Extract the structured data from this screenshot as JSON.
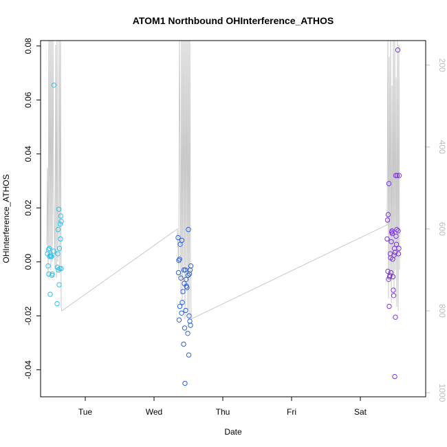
{
  "chart_data": {
    "type": "scatter",
    "title": "ATOM1 Northbound OHInterference_ATHOS",
    "xlabel": "Date",
    "ylabel": "OHInterference_ATHOS",
    "x_ticks": [
      "Tue",
      "Wed",
      "Thu",
      "Fri",
      "Sat"
    ],
    "x_range_days": [
      -0.65,
      4.95
    ],
    "ylim": [
      -0.05,
      0.082
    ],
    "y_ticks": [
      -0.04,
      -0.02,
      0.0,
      0.02,
      0.04,
      0.06,
      0.08
    ],
    "y_tick_labels": [
      "-0.04",
      "-0.02",
      "0.00",
      "0.02",
      "0.04",
      "0.06",
      "0.08"
    ],
    "right_axis": {
      "reversed": true,
      "lim": [
        140,
        1010
      ],
      "ticks": [
        200,
        400,
        600,
        800,
        1000
      ],
      "tick_labels": [
        "200",
        "400",
        "600",
        "800",
        "1000"
      ],
      "color": "#bdbdbd"
    },
    "grid": false,
    "series": [
      {
        "color": "#29c3ee",
        "points": [
          [
            -0.55,
            0.003
          ],
          [
            -0.54,
            -0.0015
          ],
          [
            -0.535,
            0.0045
          ],
          [
            -0.53,
            -0.0045
          ],
          [
            -0.525,
            0.005
          ],
          [
            -0.52,
            0.002
          ],
          [
            -0.51,
            -0.012
          ],
          [
            -0.505,
            0.0025
          ],
          [
            -0.5,
            0.002
          ],
          [
            -0.49,
            0.002
          ],
          [
            -0.485,
            -0.005
          ],
          [
            -0.48,
            -0.0045
          ],
          [
            -0.46,
            0.004
          ],
          [
            -0.455,
            0.0655
          ],
          [
            -0.41,
            -0.0155
          ],
          [
            -0.405,
            -0.002
          ],
          [
            -0.4,
            0.003
          ],
          [
            -0.395,
            0.012
          ],
          [
            -0.39,
            -0.003
          ],
          [
            -0.385,
            0.0195
          ],
          [
            -0.38,
            -0.0085
          ],
          [
            -0.375,
            0.005
          ],
          [
            -0.37,
            -0.0025
          ],
          [
            -0.365,
            0.014
          ],
          [
            -0.36,
            0.0085
          ],
          [
            -0.355,
            0.017
          ],
          [
            -0.35,
            0.015
          ],
          [
            -0.35,
            -0.0025
          ]
        ]
      },
      {
        "color": "#2b5fe0",
        "points": [
          [
            1.35,
            0.009
          ],
          [
            1.355,
            -0.004
          ],
          [
            1.36,
            0.0005
          ],
          [
            1.365,
            -0.0215
          ],
          [
            1.37,
            0.001
          ],
          [
            1.375,
            -0.0165
          ],
          [
            1.38,
            0.0065
          ],
          [
            1.39,
            -0.006
          ],
          [
            1.4,
            -0.019
          ],
          [
            1.405,
            0.008
          ],
          [
            1.41,
            -0.015
          ],
          [
            1.42,
            -0.011
          ],
          [
            1.43,
            -0.0305
          ],
          [
            1.435,
            -0.003
          ],
          [
            1.44,
            -0.008
          ],
          [
            1.445,
            -0.0245
          ],
          [
            1.45,
            -0.045
          ],
          [
            1.455,
            -0.003
          ],
          [
            1.46,
            -0.018
          ],
          [
            1.465,
            -0.0065
          ],
          [
            1.47,
            -0.009
          ],
          [
            1.48,
            -0.0095
          ],
          [
            1.49,
            -0.0265
          ],
          [
            1.495,
            -0.005
          ],
          [
            1.5,
            0.012
          ],
          [
            1.505,
            -0.0345
          ],
          [
            1.51,
            -0.02
          ],
          [
            1.515,
            -0.0045
          ],
          [
            1.52,
            -0.022
          ],
          [
            1.525,
            -0.003
          ],
          [
            1.53,
            -0.0235
          ],
          [
            1.535,
            -0.0015
          ]
        ]
      },
      {
        "color": "#7b35e0",
        "points": [
          [
            4.39,
            0.0085
          ],
          [
            4.395,
            0.0155
          ],
          [
            4.4,
            -0.0035
          ],
          [
            4.405,
            0.0175
          ],
          [
            4.41,
            -0.0065
          ],
          [
            4.415,
            0.029
          ],
          [
            4.42,
            -0.0165
          ],
          [
            4.425,
            -0.0055
          ],
          [
            4.43,
            -0.005
          ],
          [
            4.435,
            0.003
          ],
          [
            4.44,
            0.0015
          ],
          [
            4.445,
            -0.004
          ],
          [
            4.45,
            0.0075
          ],
          [
            4.455,
            0.011
          ],
          [
            4.46,
            0.0115
          ],
          [
            4.465,
            0.0105
          ],
          [
            4.47,
            0.001
          ],
          [
            4.475,
            -0.0055
          ],
          [
            4.48,
            -0.0105
          ],
          [
            4.485,
            -0.0125
          ],
          [
            4.49,
            0.0025
          ],
          [
            4.495,
            0.005
          ],
          [
            4.5,
            -0.0425
          ],
          [
            4.505,
            0.0035
          ],
          [
            4.51,
            -0.0205
          ],
          [
            4.515,
            0.032
          ],
          [
            4.52,
            0.0095
          ],
          [
            4.525,
            0.0065
          ],
          [
            4.53,
            0.012
          ],
          [
            4.535,
            0.032
          ],
          [
            4.545,
            0.0785
          ],
          [
            4.55,
            0.0115
          ],
          [
            4.555,
            0.003
          ],
          [
            4.56,
            0.005
          ],
          [
            4.565,
            0.032
          ]
        ]
      }
    ],
    "background_line": {
      "color": "#c8c8c8",
      "x": [
        -0.56,
        -0.55,
        -0.54,
        -0.53,
        -0.52,
        -0.51,
        -0.5,
        -0.49,
        -0.48,
        -0.47,
        -0.46,
        -0.45,
        -0.44,
        -0.43,
        -0.42,
        -0.41,
        -0.4,
        -0.39,
        -0.38,
        -0.37,
        -0.36,
        -0.35,
        -0.34,
        1.34,
        1.36,
        1.37,
        1.38,
        1.39,
        1.4,
        1.41,
        1.42,
        1.43,
        1.44,
        1.45,
        1.46,
        1.47,
        1.48,
        1.49,
        1.5,
        1.51,
        1.52,
        1.53,
        1.54,
        4.39,
        4.4,
        4.41,
        4.42,
        4.43,
        4.44,
        4.45,
        4.46,
        4.47,
        4.48,
        4.49,
        4.5,
        4.51,
        4.52,
        4.53,
        4.54,
        4.55,
        4.56,
        4.57
      ],
      "y": [
        640,
        450,
        720,
        120,
        650,
        110,
        700,
        120,
        680,
        130,
        500,
        600,
        700,
        150,
        720,
        110,
        680,
        530,
        120,
        700,
        110,
        790,
        800,
        600,
        700,
        140,
        410,
        760,
        115,
        790,
        115,
        700,
        115,
        820,
        115,
        700,
        115,
        800,
        115,
        820,
        115,
        700,
        820,
        590,
        120,
        770,
        180,
        710,
        120,
        780,
        250,
        720,
        130,
        760,
        120,
        700,
        230,
        790,
        130,
        800,
        150,
        700
      ]
    }
  }
}
